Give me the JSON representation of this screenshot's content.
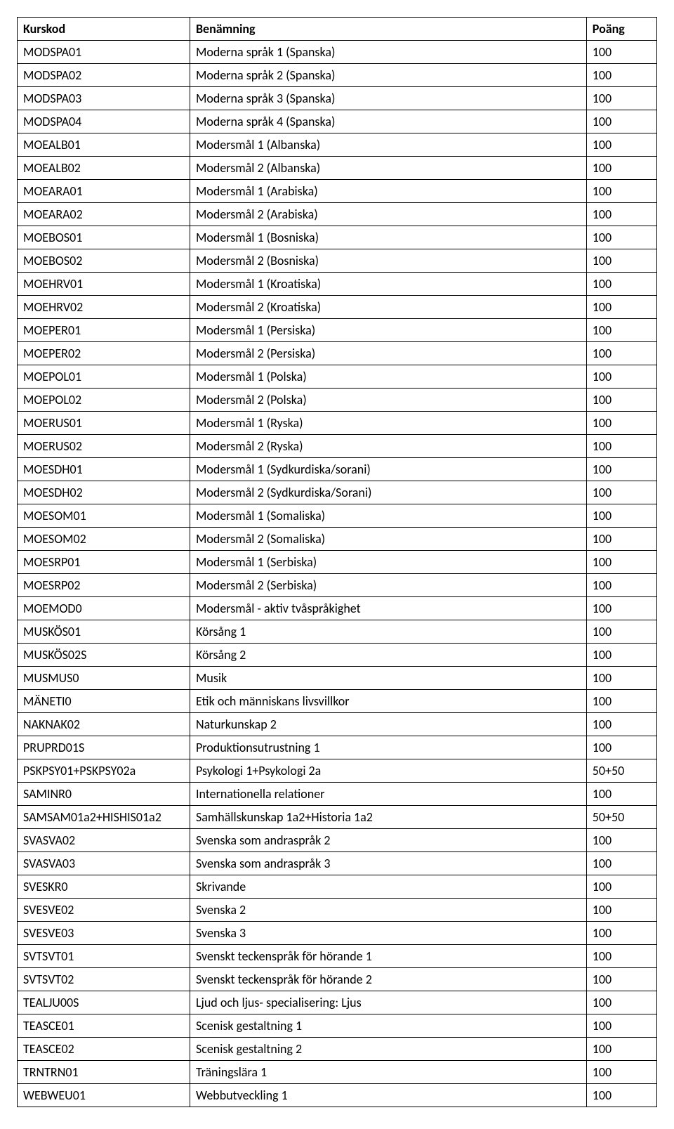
{
  "table": {
    "columns": [
      "Kurskod",
      "Benämning",
      "Poäng"
    ],
    "column_widths": [
      "27%",
      "62%",
      "11%"
    ],
    "border_color": "#000000",
    "background_color": "#ffffff",
    "header_fontweight": "bold",
    "fontsize": 18,
    "rows": [
      [
        "MODSPA01",
        "Moderna språk 1 (Spanska)",
        "100"
      ],
      [
        "MODSPA02",
        "Moderna språk 2 (Spanska)",
        "100"
      ],
      [
        "MODSPA03",
        "Moderna språk 3 (Spanska)",
        "100"
      ],
      [
        "MODSPA04",
        "Moderna språk 4 (Spanska)",
        "100"
      ],
      [
        "MOEALB01",
        "Modersmål 1 (Albanska)",
        "100"
      ],
      [
        "MOEALB02",
        "Modersmål 2 (Albanska)",
        "100"
      ],
      [
        "MOEARA01",
        "Modersmål 1 (Arabiska)",
        "100"
      ],
      [
        "MOEARA02",
        "Modersmål 2 (Arabiska)",
        "100"
      ],
      [
        "MOEBOS01",
        "Modersmål 1 (Bosniska)",
        "100"
      ],
      [
        "MOEBOS02",
        "Modersmål 2 (Bosniska)",
        "100"
      ],
      [
        "MOEHRV01",
        "Modersmål 1 (Kroatiska)",
        "100"
      ],
      [
        "MOEHRV02",
        "Modersmål 2 (Kroatiska)",
        "100"
      ],
      [
        "MOEPER01",
        "Modersmål 1 (Persiska)",
        "100"
      ],
      [
        "MOEPER02",
        "Modersmål 2 (Persiska)",
        "100"
      ],
      [
        "MOEPOL01",
        "Modersmål 1 (Polska)",
        "100"
      ],
      [
        "MOEPOL02",
        "Modersmål 2 (Polska)",
        "100"
      ],
      [
        "MOERUS01",
        "Modersmål 1 (Ryska)",
        "100"
      ],
      [
        "MOERUS02",
        "Modersmål 2 (Ryska)",
        "100"
      ],
      [
        "MOESDH01",
        "Modersmål 1 (Sydkurdiska/sorani)",
        "100"
      ],
      [
        "MOESDH02",
        "Modersmål 2 (Sydkurdiska/Sorani)",
        "100"
      ],
      [
        "MOESOM01",
        "Modersmål 1 (Somaliska)",
        "100"
      ],
      [
        "MOESOM02",
        "Modersmål 2 (Somaliska)",
        "100"
      ],
      [
        "MOESRP01",
        "Modersmål 1 (Serbiska)",
        "100"
      ],
      [
        "MOESRP02",
        "Modersmål 2 (Serbiska)",
        "100"
      ],
      [
        "MOEMOD0",
        "Modersmål - aktiv tvåspråkighet",
        "100"
      ],
      [
        "MUSKÖS01",
        "Körsång 1",
        "100"
      ],
      [
        "MUSKÖS02S",
        "Körsång 2",
        "100"
      ],
      [
        "MUSMUS0",
        "Musik",
        "100"
      ],
      [
        "MÄNETI0",
        "Etik och människans livsvillkor",
        "100"
      ],
      [
        "NAKNAK02",
        "Naturkunskap 2",
        "100"
      ],
      [
        "PRUPRD01S",
        "Produktionsutrustning 1",
        "100"
      ],
      [
        "PSKPSY01+PSKPSY02a",
        "Psykologi 1+Psykologi 2a",
        "50+50"
      ],
      [
        "SAMINR0",
        "Internationella relationer",
        "100"
      ],
      [
        "SAMSAM01a2+HISHIS01a2",
        "Samhällskunskap 1a2+Historia 1a2",
        "50+50"
      ],
      [
        "SVASVA02",
        "Svenska som andraspråk 2",
        "100"
      ],
      [
        "SVASVA03",
        "Svenska som andraspråk 3",
        "100"
      ],
      [
        "SVESKR0",
        "Skrivande",
        "100"
      ],
      [
        "SVESVE02",
        "Svenska 2",
        "100"
      ],
      [
        "SVESVE03",
        "Svenska 3",
        "100"
      ],
      [
        "SVTSVT01",
        "Svenskt teckenspråk för hörande 1",
        "100"
      ],
      [
        "SVTSVT02",
        "Svenskt teckenspråk för hörande 2",
        "100"
      ],
      [
        "TEALJU00S",
        "Ljud och ljus- specialisering: Ljus",
        "100"
      ],
      [
        "TEASCE01",
        "Scenisk gestaltning 1",
        "100"
      ],
      [
        "TEASCE02",
        "Scenisk gestaltning 2",
        "100"
      ],
      [
        "TRNTRN01",
        "Träningslära 1",
        "100"
      ],
      [
        "WEBWEU01",
        "Webbutveckling 1",
        "100"
      ]
    ]
  }
}
